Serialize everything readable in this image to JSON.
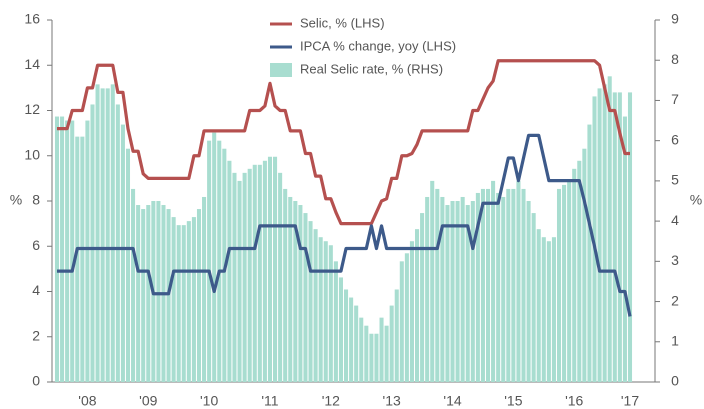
{
  "chart_data": {
    "type": "line",
    "categories": [
      null,
      null,
      null,
      null,
      null,
      null,
      "'08",
      null,
      null,
      null,
      null,
      null,
      null,
      null,
      null,
      null,
      null,
      null,
      "'09",
      null,
      null,
      null,
      null,
      null,
      null,
      null,
      null,
      null,
      null,
      null,
      "'10",
      null,
      null,
      null,
      null,
      null,
      null,
      null,
      null,
      null,
      null,
      null,
      "'11",
      null,
      null,
      null,
      null,
      null,
      null,
      null,
      null,
      null,
      null,
      null,
      "'12",
      null,
      null,
      null,
      null,
      null,
      null,
      null,
      null,
      null,
      null,
      null,
      "'13",
      null,
      null,
      null,
      null,
      null,
      null,
      null,
      null,
      null,
      null,
      null,
      "'14",
      null,
      null,
      null,
      null,
      null,
      null,
      null,
      null,
      null,
      null,
      null,
      "'15",
      null,
      null,
      null,
      null,
      null,
      null,
      null,
      null,
      null,
      null,
      null,
      "'16",
      null,
      null,
      null,
      null,
      null,
      null,
      null,
      null,
      null,
      null,
      "'17"
    ],
    "series": [
      {
        "name": "Selic, % (LHS)",
        "type": "line",
        "color": "#b5504f",
        "axis": "y",
        "values": [
          11.2,
          11.2,
          11.2,
          12,
          12,
          12,
          13,
          13,
          14,
          14,
          14,
          14,
          12.8,
          12.8,
          11.2,
          10.2,
          10.2,
          9.2,
          9,
          9,
          9,
          9,
          9,
          9,
          9,
          9,
          9,
          10,
          10,
          11.1,
          11.1,
          11.1,
          11.1,
          11.1,
          11.1,
          11.1,
          11.1,
          11.1,
          12,
          12,
          12,
          12.2,
          13.2,
          12.2,
          12,
          12,
          11.1,
          11.1,
          11.1,
          10.1,
          10.1,
          9.1,
          9.1,
          8.1,
          8.1,
          7.5,
          7,
          7,
          7,
          7,
          7,
          7,
          7,
          7.5,
          8,
          8.1,
          9,
          9,
          10,
          10,
          10.1,
          10.5,
          11.1,
          11.1,
          11.1,
          11.1,
          11.1,
          11.1,
          11.1,
          11.1,
          11.1,
          11.1,
          12,
          12,
          12.5,
          13,
          13.3,
          14.2,
          14.2,
          14.2,
          14.2,
          14.2,
          14.2,
          14.2,
          14.2,
          14.2,
          14.2,
          14.2,
          14.2,
          14.2,
          14.2,
          14.2,
          14.2,
          14.2,
          14.2,
          14.2,
          14.2,
          14,
          13,
          12,
          12,
          11,
          10.1,
          10.1
        ]
      },
      {
        "name": "IPCA % change, yoy (LHS)",
        "type": "line",
        "color": "#3d5a8a",
        "axis": "y",
        "values": [
          4.9,
          4.9,
          4.9,
          4.9,
          5.9,
          5.9,
          5.9,
          5.9,
          5.9,
          5.9,
          5.9,
          5.9,
          5.9,
          5.9,
          5.9,
          5.9,
          4.9,
          4.9,
          4.9,
          3.9,
          3.9,
          3.9,
          3.9,
          4.9,
          4.9,
          4.9,
          4.9,
          4.9,
          4.9,
          4.9,
          4.9,
          4.0,
          4.9,
          4.9,
          5.9,
          5.9,
          5.9,
          5.9,
          5.9,
          5.9,
          6.9,
          6.9,
          6.9,
          6.9,
          6.9,
          6.9,
          6.9,
          6.9,
          5.9,
          5.9,
          4.9,
          4.9,
          4.9,
          4.9,
          4.9,
          4.9,
          4.9,
          5.9,
          5.9,
          5.9,
          5.9,
          5.9,
          6.9,
          5.9,
          6.9,
          5.9,
          5.9,
          5.9,
          5.9,
          5.9,
          5.9,
          5.9,
          5.9,
          5.9,
          5.9,
          5.9,
          6.9,
          6.9,
          6.9,
          6.9,
          6.9,
          6.9,
          5.9,
          6.9,
          7.9,
          7.9,
          7.9,
          7.9,
          8.9,
          9.9,
          9.9,
          8.9,
          9.9,
          10.9,
          10.9,
          10.9,
          9.9,
          8.9,
          8.9,
          8.9,
          8.9,
          8.9,
          8.9,
          8.9,
          8.0,
          7.0,
          6.0,
          4.9,
          4.9,
          4.9,
          4.9,
          4.0,
          4.0,
          2.9
        ]
      },
      {
        "name": "Real Selic rate, % (RHS)",
        "type": "bar",
        "color": "#a8ddd0",
        "axis": "y2",
        "values": [
          6.6,
          6.6,
          6.5,
          6.5,
          6.1,
          6.1,
          6.5,
          6.9,
          7.4,
          7.3,
          7.3,
          7.4,
          6.9,
          6.4,
          5.8,
          4.8,
          4.4,
          4.3,
          4.4,
          4.5,
          4.5,
          4.4,
          4.3,
          4.1,
          3.9,
          3.9,
          4.0,
          4.1,
          4.3,
          4.6,
          6.0,
          6.2,
          6.0,
          5.8,
          5.5,
          5.2,
          5.0,
          5.2,
          5.3,
          5.4,
          5.4,
          5.5,
          5.6,
          5.6,
          5.2,
          4.8,
          4.6,
          4.5,
          4.4,
          4.2,
          4.0,
          3.8,
          3.6,
          3.5,
          3.4,
          3.0,
          2.6,
          2.3,
          2.1,
          1.9,
          1.6,
          1.4,
          1.2,
          1.2,
          1.6,
          1.4,
          1.9,
          2.3,
          3.0,
          3.2,
          3.5,
          3.8,
          4.2,
          4.6,
          5.0,
          4.8,
          4.6,
          4.4,
          4.5,
          4.5,
          4.6,
          4.4,
          4.5,
          4.7,
          4.8,
          4.8,
          5.0,
          4.7,
          4.6,
          4.8,
          4.8,
          5.0,
          4.8,
          4.5,
          4.2,
          3.8,
          3.6,
          3.5,
          3.6,
          4.8,
          4.9,
          5.0,
          5.3,
          5.5,
          5.8,
          6.4,
          7.1,
          7.3,
          7.4,
          7.6,
          7.2,
          7.2,
          6.6,
          7.2
        ]
      }
    ],
    "ylabel": "%",
    "y2label": "%",
    "ylim": [
      0,
      16
    ],
    "yticks": [
      0,
      2,
      4,
      6,
      8,
      10,
      12,
      14,
      16
    ],
    "y2lim": [
      0,
      9
    ],
    "y2ticks": [
      0,
      1,
      2,
      3,
      4,
      5,
      6,
      7,
      8,
      9
    ],
    "legend": "top"
  }
}
